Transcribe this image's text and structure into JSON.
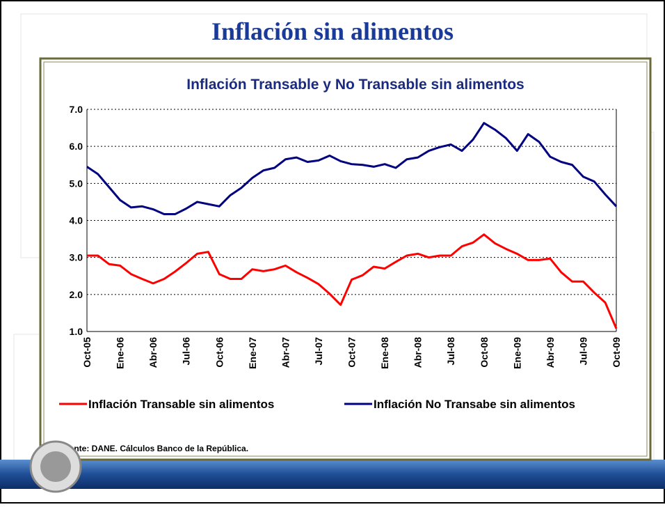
{
  "title": "Inflación sin alimentos",
  "chart_data": {
    "type": "line",
    "title": "Inflación Transable y No Transable sin alimentos",
    "categories": [
      "Oct-05",
      null,
      null,
      "Ene-06",
      null,
      null,
      "Abr-06",
      null,
      null,
      "Jul-06",
      null,
      null,
      "Oct-06",
      null,
      null,
      "Ene-07",
      null,
      null,
      "Abr-07",
      null,
      null,
      "Jul-07",
      null,
      null,
      "Oct-07",
      null,
      null,
      "Ene-08",
      null,
      null,
      "Abr-08",
      null,
      null,
      "Jul-08",
      null,
      null,
      "Oct-08",
      null,
      null,
      "Ene-09",
      null,
      null,
      "Abr-09",
      null,
      null,
      "Jul-09",
      null,
      null,
      "Oct-09"
    ],
    "series": [
      {
        "name": "Inflación Transable sin alimentos",
        "color": "#ff0000",
        "values": [
          3.05,
          3.05,
          2.82,
          2.78,
          2.55,
          2.42,
          2.3,
          2.42,
          2.62,
          2.85,
          3.1,
          3.15,
          2.55,
          2.42,
          2.42,
          2.68,
          2.63,
          2.68,
          2.78,
          2.6,
          2.45,
          2.28,
          2.02,
          1.72,
          2.4,
          2.52,
          2.75,
          2.7,
          2.88,
          3.05,
          3.1,
          3.0,
          3.05,
          3.05,
          3.3,
          3.4,
          3.62,
          3.38,
          3.23,
          3.1,
          2.93,
          2.93,
          2.97,
          2.6,
          2.35,
          2.35,
          2.05,
          1.78,
          1.08
        ]
      },
      {
        "name": "Inflación No Transabe sin alimentos",
        "color": "#000080",
        "values": [
          5.45,
          5.25,
          4.9,
          4.55,
          4.35,
          4.38,
          4.3,
          4.17,
          4.17,
          4.32,
          4.5,
          4.44,
          4.38,
          4.68,
          4.88,
          5.15,
          5.35,
          5.42,
          5.65,
          5.7,
          5.58,
          5.62,
          5.75,
          5.6,
          5.52,
          5.5,
          5.45,
          5.52,
          5.42,
          5.65,
          5.7,
          5.88,
          5.98,
          6.05,
          5.88,
          6.18,
          6.63,
          6.45,
          6.22,
          5.88,
          6.33,
          6.12,
          5.72,
          5.58,
          5.5,
          5.18,
          5.05,
          4.7,
          4.38
        ]
      }
    ],
    "ylim": [
      1,
      7
    ],
    "yticks": [
      {
        "value": 1,
        "label": "1.0"
      },
      {
        "value": 2,
        "label": "2.0"
      },
      {
        "value": 3,
        "label": "3.0"
      },
      {
        "value": 4,
        "label": "4.0"
      },
      {
        "value": 5,
        "label": "5.0"
      },
      {
        "value": 6,
        "label": "6.0"
      },
      {
        "value": 7,
        "label": "7.0"
      }
    ],
    "grid": true,
    "source": "Fuente: DANE. Cálculos Banco de la República."
  }
}
